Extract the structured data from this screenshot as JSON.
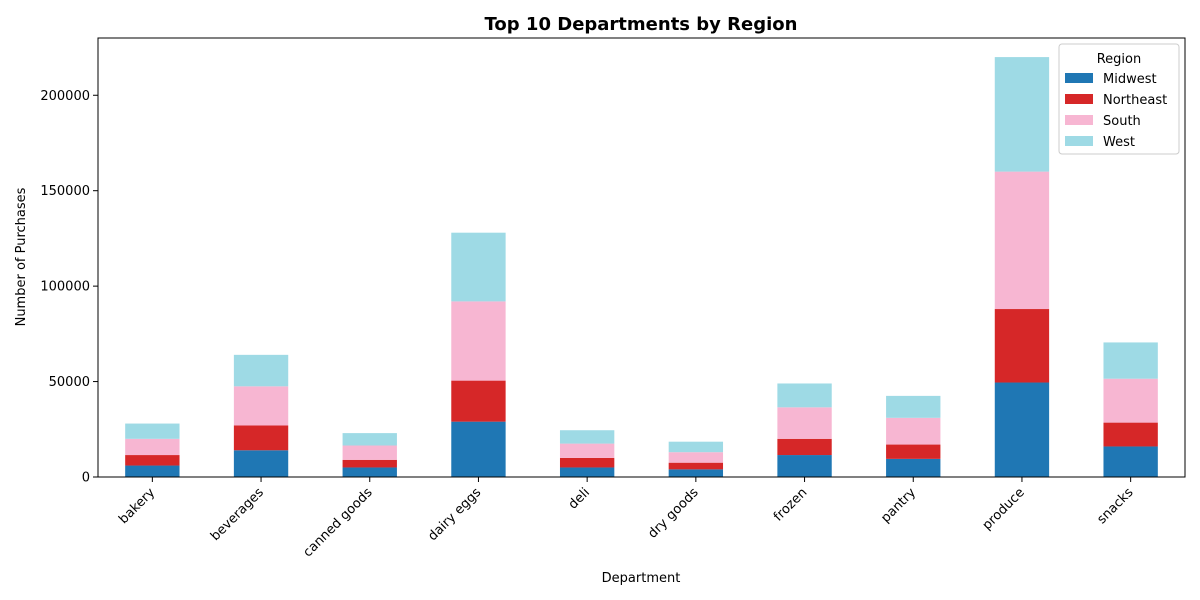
{
  "chart_data": {
    "type": "bar",
    "stacked": true,
    "title": "Top 10 Departments by Region",
    "xlabel": "Department",
    "ylabel": "Number of Purchases",
    "ylim": [
      0,
      230000
    ],
    "yticks": [
      0,
      50000,
      100000,
      150000,
      200000
    ],
    "ytick_labels": [
      "0",
      "50000",
      "100000",
      "150000",
      "200000"
    ],
    "grid": false,
    "categories": [
      "bakery",
      "beverages",
      "canned goods",
      "dairy eggs",
      "deli",
      "dry goods",
      "frozen",
      "pantry",
      "produce",
      "snacks"
    ],
    "legend": {
      "title": "Region",
      "position": "top-right"
    },
    "series": [
      {
        "name": "Midwest",
        "color": "#1f77b4",
        "values": [
          6000,
          14000,
          5000,
          29000,
          5000,
          4000,
          11500,
          9500,
          49500,
          16000
        ]
      },
      {
        "name": "Northeast",
        "color": "#d62728",
        "values": [
          5500,
          13000,
          4000,
          21500,
          5000,
          3500,
          8500,
          7500,
          38500,
          12500
        ]
      },
      {
        "name": "South",
        "color": "#f7b6d2",
        "values": [
          8500,
          20500,
          7500,
          41500,
          7500,
          5500,
          16500,
          14000,
          72000,
          23000
        ]
      },
      {
        "name": "West",
        "color": "#9edae5",
        "values": [
          8000,
          16500,
          6500,
          36000,
          7000,
          5500,
          12500,
          11500,
          60000,
          19000
        ]
      }
    ]
  }
}
